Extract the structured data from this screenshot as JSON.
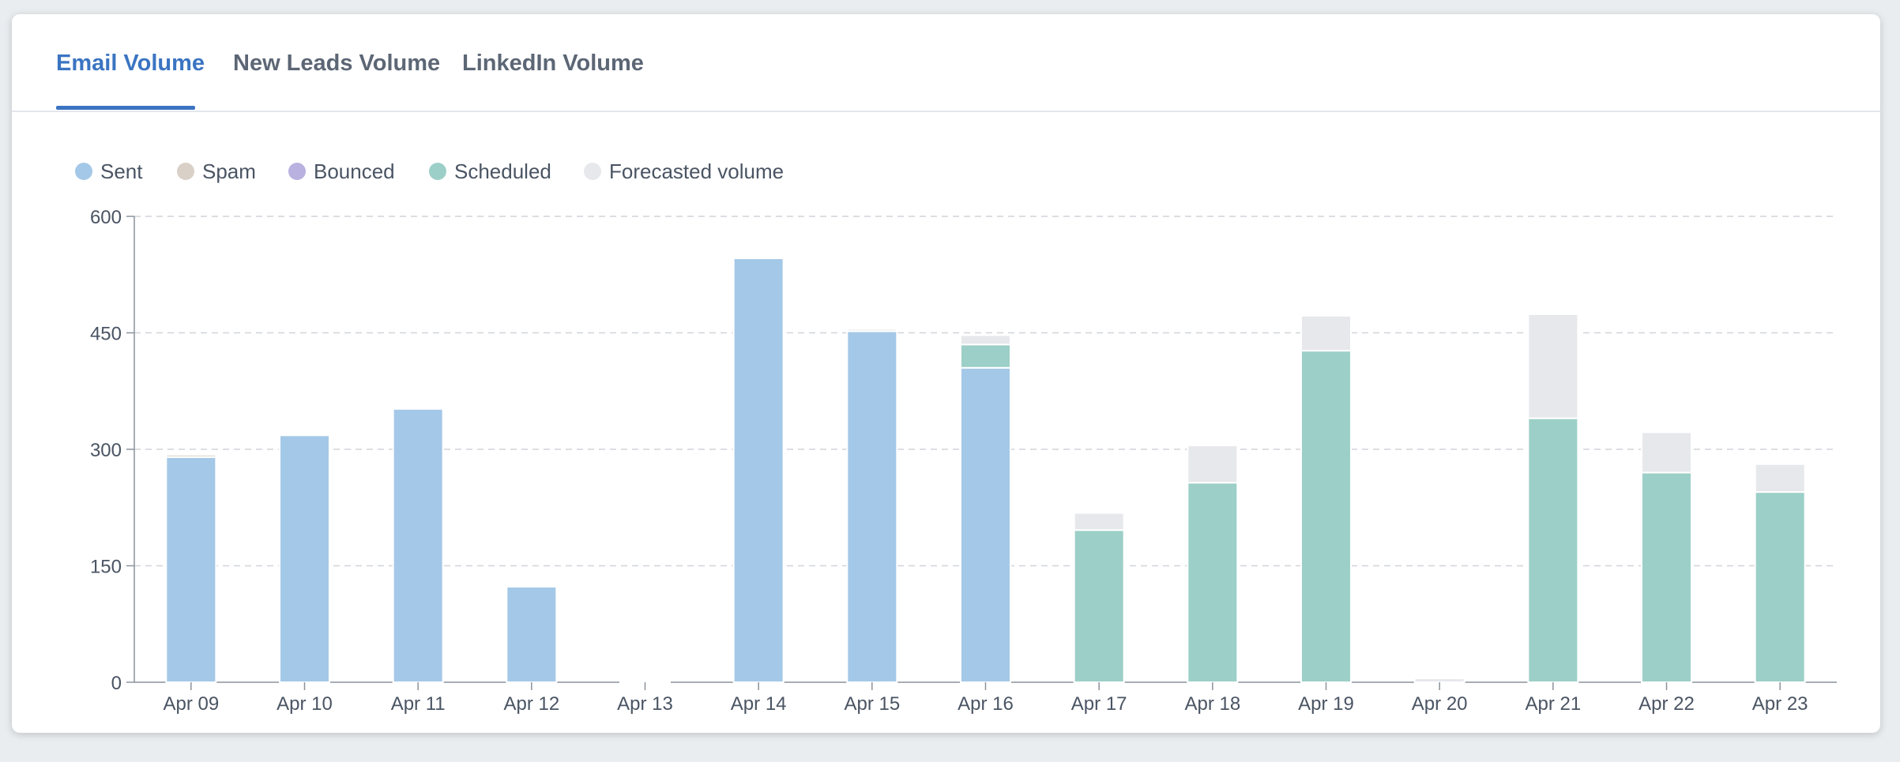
{
  "tabs": [
    {
      "label": "Email Volume",
      "active": true
    },
    {
      "label": "New Leads Volume",
      "active": false
    },
    {
      "label": "LinkedIn Volume",
      "active": false
    }
  ],
  "legend": [
    {
      "label": "Sent",
      "color": "#a4c8e7"
    },
    {
      "label": "Spam",
      "color": "#d9d0c7"
    },
    {
      "label": "Bounced",
      "color": "#b9b1df"
    },
    {
      "label": "Scheduled",
      "color": "#9ccfc7"
    },
    {
      "label": "Forecasted volume",
      "color": "#e7e8ec"
    }
  ],
  "chart_data": {
    "type": "bar",
    "stacked": true,
    "categories": [
      "Apr 09",
      "Apr 10",
      "Apr 11",
      "Apr 12",
      "Apr 13",
      "Apr 14",
      "Apr 15",
      "Apr 16",
      "Apr 17",
      "Apr 18",
      "Apr 19",
      "Apr 20",
      "Apr 21",
      "Apr 22",
      "Apr 23"
    ],
    "series": [
      {
        "name": "Sent",
        "color": "#a4c8e7",
        "values": [
          290,
          318,
          352,
          123,
          2,
          546,
          452,
          405,
          0,
          0,
          0,
          0,
          0,
          0,
          0
        ]
      },
      {
        "name": "Spam",
        "color": "#d9d0c7",
        "values": [
          3,
          0,
          0,
          0,
          0,
          0,
          0,
          0,
          0,
          0,
          0,
          0,
          0,
          0,
          0
        ]
      },
      {
        "name": "Bounced",
        "color": "#b9b1df",
        "values": [
          0,
          0,
          0,
          0,
          0,
          0,
          0,
          0,
          0,
          0,
          0,
          0,
          0,
          0,
          0
        ]
      },
      {
        "name": "Scheduled",
        "color": "#9ccfc7",
        "values": [
          0,
          0,
          0,
          0,
          0,
          0,
          0,
          30,
          196,
          257,
          427,
          0,
          340,
          270,
          245
        ]
      },
      {
        "name": "Forecasted volume",
        "color": "#e7e8ec",
        "values": [
          0,
          0,
          0,
          0,
          0,
          0,
          3,
          12,
          22,
          48,
          45,
          5,
          134,
          52,
          36
        ]
      }
    ],
    "y_ticks": [
      0,
      150,
      300,
      450,
      600
    ],
    "ylim": [
      0,
      600
    ],
    "grid": true,
    "legend_position": "top-left"
  }
}
